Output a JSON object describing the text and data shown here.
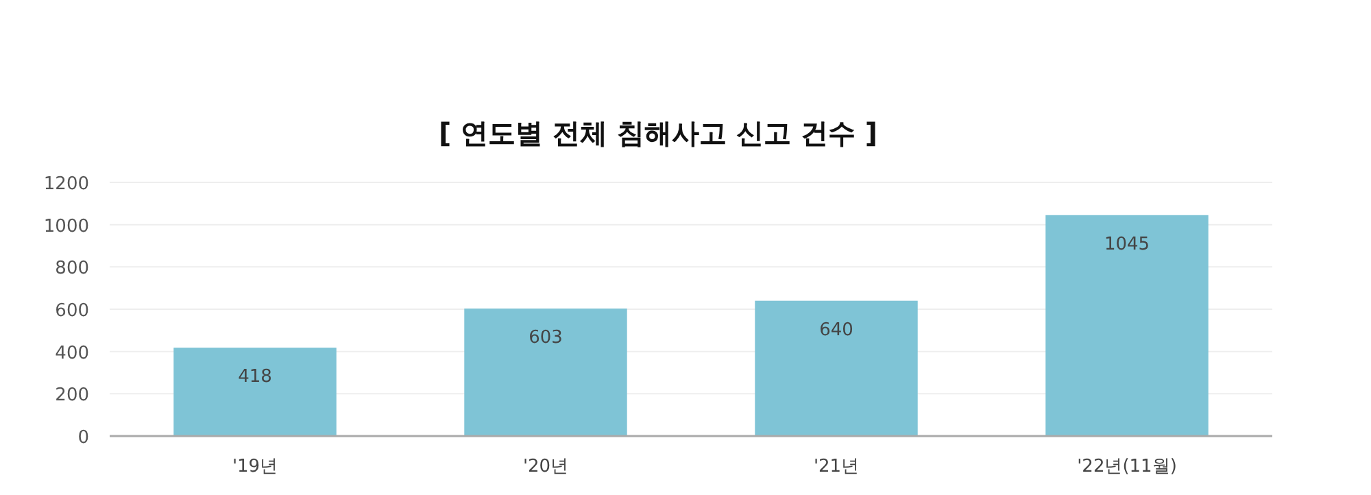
{
  "chart_data": {
    "type": "bar",
    "title": "[ 연도별 전체 침해사고 신고 건수 ]",
    "categories": [
      "'19년",
      "'20년",
      "'21년",
      "'22년(11월)"
    ],
    "values": [
      418,
      603,
      640,
      1045
    ],
    "color": "#7fc4d6",
    "ylim": [
      0,
      1200
    ],
    "yticks": [
      0,
      200,
      400,
      600,
      800,
      1000,
      1200
    ],
    "grid": "y",
    "data_labels": true
  }
}
